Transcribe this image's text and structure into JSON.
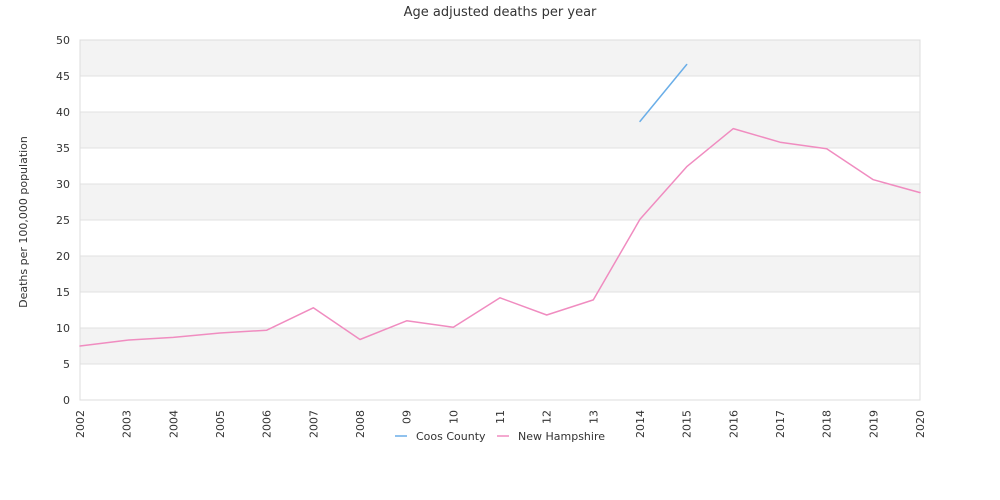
{
  "chart_data": {
    "type": "line",
    "title": "Age adjusted deaths per year",
    "ylabel": "Deaths per 100,000 population",
    "xlabel": "",
    "ylim": [
      0,
      50
    ],
    "yticks": [
      0,
      5,
      10,
      15,
      20,
      25,
      30,
      35,
      40,
      45,
      50
    ],
    "categories": [
      "2002",
      "2003",
      "2004",
      "2005",
      "2006",
      "2007",
      "2008",
      "09",
      "10",
      "11",
      "12",
      "13",
      "2014",
      "2015",
      "2016",
      "2017",
      "2018",
      "2019",
      "2020"
    ],
    "grid": true,
    "legend_position": "bottom",
    "series": [
      {
        "name": "Coos County",
        "color": "#6aaee8",
        "values": [
          null,
          null,
          null,
          null,
          null,
          null,
          null,
          null,
          null,
          null,
          null,
          null,
          38.7,
          46.6,
          null,
          null,
          null,
          null,
          null
        ]
      },
      {
        "name": "New Hampshire",
        "color": "#f08cc0",
        "values": [
          7.5,
          8.3,
          8.7,
          9.3,
          9.7,
          12.8,
          8.4,
          11.0,
          10.1,
          14.2,
          11.8,
          13.9,
          25.1,
          32.4,
          37.7,
          35.8,
          34.9,
          30.6,
          28.8
        ]
      }
    ]
  }
}
